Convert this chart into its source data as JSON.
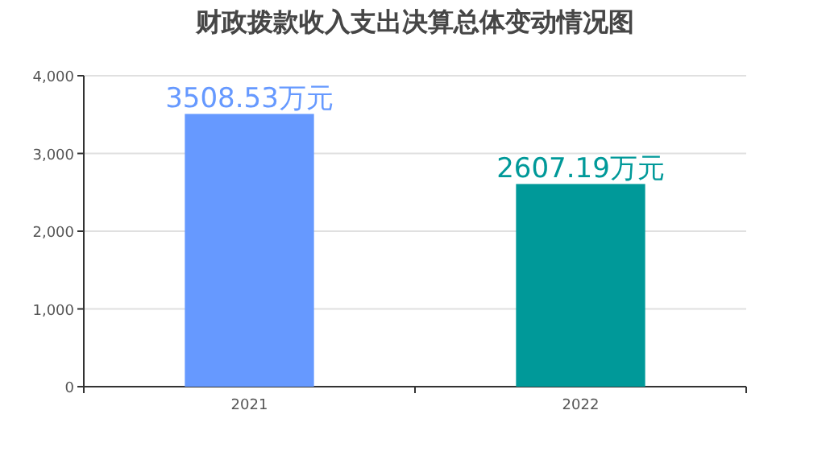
{
  "chart_data": {
    "type": "bar",
    "title": "财政拨款收入支出决算总体变动情况图",
    "categories": [
      "2021",
      "2022"
    ],
    "values": [
      3508.53,
      2607.19
    ],
    "colors": [
      "#6699ff",
      "#009999"
    ],
    "value_labels": [
      "3508.53万元",
      "2607.19万元"
    ],
    "ylim": [
      0,
      4000
    ],
    "yticks": [
      {
        "value": 0,
        "label": "0"
      },
      {
        "value": 1000,
        "label": "1,000"
      },
      {
        "value": 2000,
        "label": "2,000"
      },
      {
        "value": 3000,
        "label": "3,000"
      },
      {
        "value": 4000,
        "label": "4,000"
      }
    ],
    "grid": "y"
  }
}
